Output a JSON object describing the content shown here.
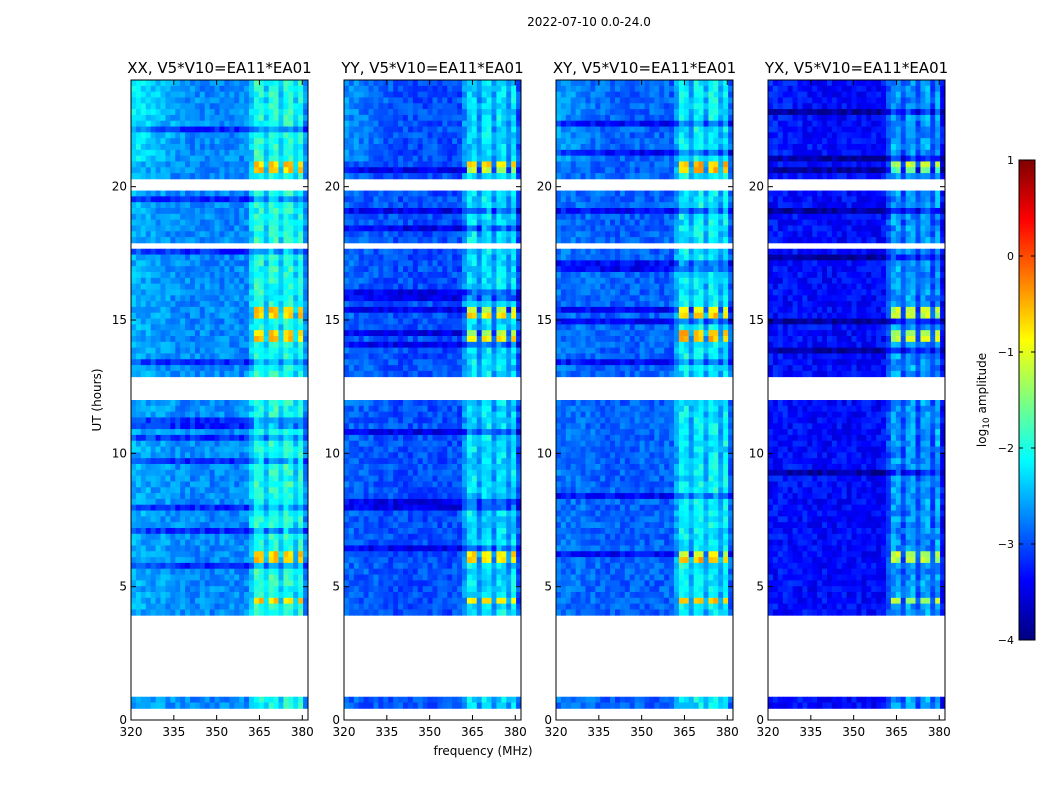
{
  "chart_data": {
    "type": "heatmap",
    "title": "2022-07-10 0.0-24.0",
    "xlabel": "frequency (MHz)",
    "ylabel": "UT (hours)",
    "xlim": [
      320,
      382
    ],
    "ylim": [
      0,
      24
    ],
    "xticks": [
      "320",
      "335",
      "350",
      "365",
      "380"
    ],
    "yticks": [
      "0",
      "5",
      "10",
      "15",
      "20"
    ],
    "colorbar": {
      "label": "log10 amplitude",
      "label_base": "log",
      "label_sub": "10",
      "label_rest": " amplitude",
      "range": [
        -4,
        1
      ],
      "ticks": [
        "1",
        "0",
        "−1",
        "−2",
        "−3",
        "−4"
      ],
      "colormap": [
        "#00007f",
        "#0000ff",
        "#007fff",
        "#00ffff",
        "#7fff7f",
        "#ffff00",
        "#ff7f00",
        "#ff0000",
        "#7f0000"
      ]
    },
    "panels": [
      {
        "title": "XX, V5*V10=EA11*EA01",
        "base": -2.7,
        "grad": 0.55,
        "burst": 1.15
      },
      {
        "title": "YY, V5*V10=EA11*EA01",
        "base": -3.0,
        "grad": 0.35,
        "burst": 1.35
      },
      {
        "title": "XY, V5*V10=EA11*EA01",
        "base": -2.9,
        "grad": 0.3,
        "burst": 1.45
      },
      {
        "title": "YX, V5*V10=EA11*EA01",
        "base": -3.35,
        "grad": 0.15,
        "burst": 1.25
      }
    ],
    "interference_band_mhz": [
      [
        363,
        366
      ],
      [
        368.5,
        371.5
      ],
      [
        374,
        376.5
      ],
      [
        378,
        380
      ]
    ],
    "burst_intervals_ut": [
      [
        20.6,
        21.0
      ],
      [
        15.1,
        15.4
      ],
      [
        14.2,
        14.6
      ],
      [
        6.0,
        6.3
      ],
      [
        4.3,
        4.5
      ]
    ],
    "flagged_intervals_ut": [
      [
        0.0,
        0.5
      ],
      [
        0.8,
        4.0
      ],
      [
        12.0,
        12.8
      ],
      [
        17.6,
        17.9
      ],
      [
        19.9,
        20.2
      ],
      [
        4.1,
        4.15
      ],
      [
        5.6,
        5.65
      ],
      [
        6.5,
        6.55
      ],
      [
        11.3,
        11.35
      ],
      [
        13.0,
        13.05
      ],
      [
        21.2,
        21.25
      ],
      [
        22.0,
        22.05
      ],
      [
        22.4,
        22.45
      ]
    ]
  }
}
